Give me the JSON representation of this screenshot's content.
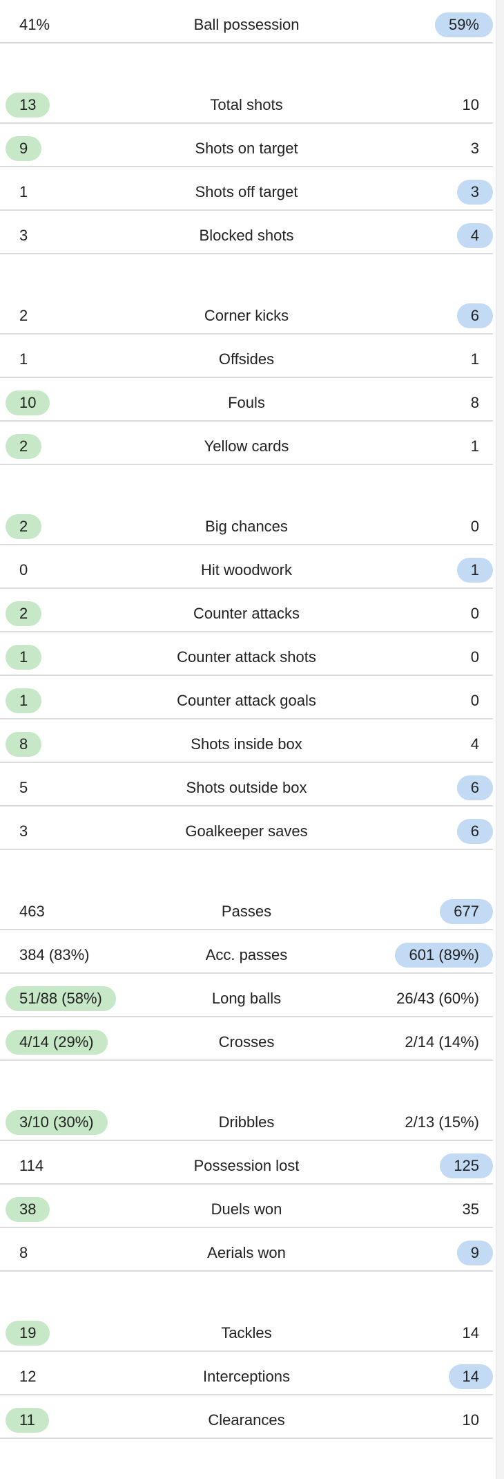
{
  "groups": [
    [
      {
        "label": "Ball possession",
        "home": "41%",
        "away": "59%",
        "leader": "away"
      }
    ],
    [
      {
        "label": "Total shots",
        "home": "13",
        "away": "10",
        "leader": "home"
      },
      {
        "label": "Shots on target",
        "home": "9",
        "away": "3",
        "leader": "home"
      },
      {
        "label": "Shots off target",
        "home": "1",
        "away": "3",
        "leader": "away"
      },
      {
        "label": "Blocked shots",
        "home": "3",
        "away": "4",
        "leader": "away"
      }
    ],
    [
      {
        "label": "Corner kicks",
        "home": "2",
        "away": "6",
        "leader": "away"
      },
      {
        "label": "Offsides",
        "home": "1",
        "away": "1",
        "leader": "none"
      },
      {
        "label": "Fouls",
        "home": "10",
        "away": "8",
        "leader": "home"
      },
      {
        "label": "Yellow cards",
        "home": "2",
        "away": "1",
        "leader": "home"
      }
    ],
    [
      {
        "label": "Big chances",
        "home": "2",
        "away": "0",
        "leader": "home"
      },
      {
        "label": "Hit woodwork",
        "home": "0",
        "away": "1",
        "leader": "away"
      },
      {
        "label": "Counter attacks",
        "home": "2",
        "away": "0",
        "leader": "home"
      },
      {
        "label": "Counter attack shots",
        "home": "1",
        "away": "0",
        "leader": "home"
      },
      {
        "label": "Counter attack goals",
        "home": "1",
        "away": "0",
        "leader": "home"
      },
      {
        "label": "Shots inside box",
        "home": "8",
        "away": "4",
        "leader": "home"
      },
      {
        "label": "Shots outside box",
        "home": "5",
        "away": "6",
        "leader": "away"
      },
      {
        "label": "Goalkeeper saves",
        "home": "3",
        "away": "6",
        "leader": "away"
      }
    ],
    [
      {
        "label": "Passes",
        "home": "463",
        "away": "677",
        "leader": "away"
      },
      {
        "label": "Acc. passes",
        "home": "384 (83%)",
        "away": "601 (89%)",
        "leader": "away"
      },
      {
        "label": "Long balls",
        "home": "51/88 (58%)",
        "away": "26/43 (60%)",
        "leader": "home"
      },
      {
        "label": "Crosses",
        "home": "4/14 (29%)",
        "away": "2/14 (14%)",
        "leader": "home"
      }
    ],
    [
      {
        "label": "Dribbles",
        "home": "3/10 (30%)",
        "away": "2/13 (15%)",
        "leader": "home"
      },
      {
        "label": "Possession lost",
        "home": "114",
        "away": "125",
        "leader": "away"
      },
      {
        "label": "Duels won",
        "home": "38",
        "away": "35",
        "leader": "home"
      },
      {
        "label": "Aerials won",
        "home": "8",
        "away": "9",
        "leader": "away"
      }
    ],
    [
      {
        "label": "Tackles",
        "home": "19",
        "away": "14",
        "leader": "home"
      },
      {
        "label": "Interceptions",
        "home": "12",
        "away": "14",
        "leader": "away"
      },
      {
        "label": "Clearances",
        "home": "11",
        "away": "10",
        "leader": "home"
      }
    ]
  ],
  "colors": {
    "home_highlight": "#c6e8c6",
    "away_highlight": "#c2daf3",
    "divider": "#dcdcdc"
  }
}
